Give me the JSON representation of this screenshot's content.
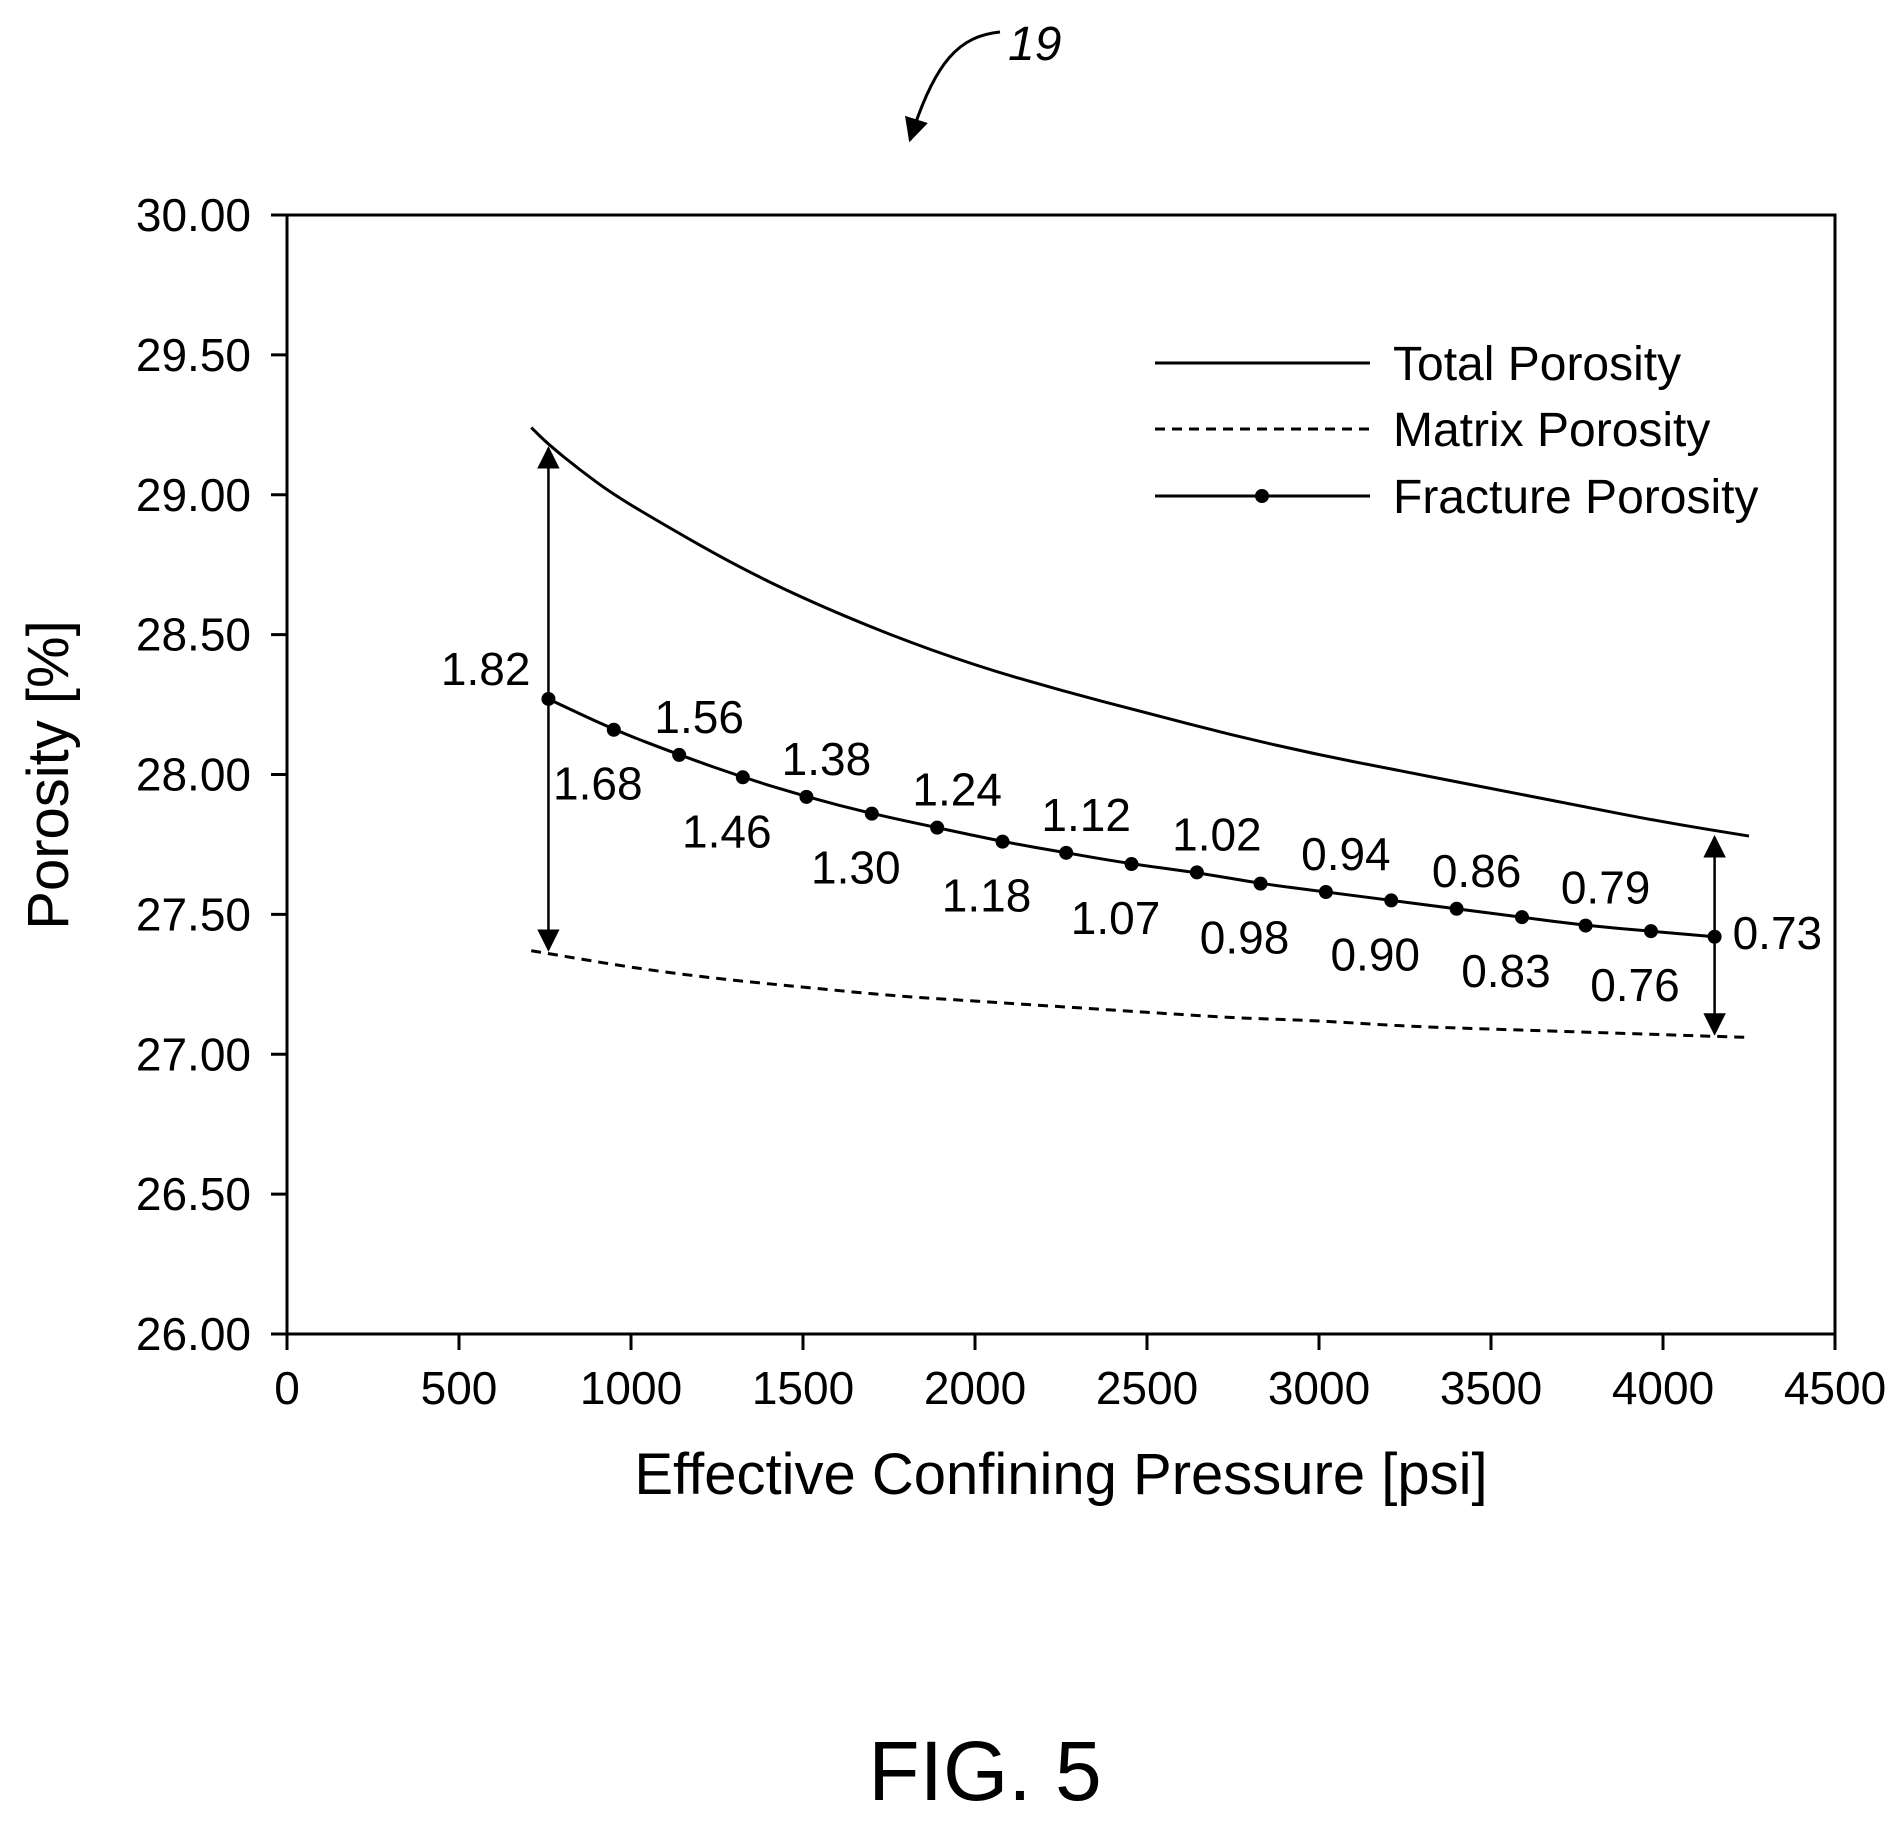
{
  "figure": {
    "caption": "FIG. 5",
    "reference_numeral": "19"
  },
  "chart_data": {
    "type": "line",
    "xlabel": "Effective Confining Pressure [psi]",
    "ylabel": "Porosity [%]",
    "xlim": [
      0,
      4500
    ],
    "ylim": [
      26.0,
      30.0
    ],
    "x_ticks": [
      "0",
      "500",
      "1000",
      "1500",
      "2000",
      "2500",
      "3000",
      "3500",
      "4000",
      "4500"
    ],
    "y_ticks": [
      "26.00",
      "26.50",
      "27.00",
      "27.50",
      "28.00",
      "28.50",
      "29.00",
      "29.50",
      "30.00"
    ],
    "grid": false,
    "legend_position": "top-right",
    "legend": [
      {
        "label": "Total Porosity",
        "style": "solid"
      },
      {
        "label": "Matrix Porosity",
        "style": "dashed"
      },
      {
        "label": "Fracture Porosity",
        "style": "solid-marker"
      }
    ],
    "series": [
      {
        "name": "Total Porosity",
        "style": "solid",
        "x": [
          710,
          760,
          850,
          950,
          1100,
          1300,
          1500,
          1750,
          2000,
          2250,
          2500,
          2750,
          3000,
          3250,
          3500,
          3750,
          4000,
          4250
        ],
        "y": [
          29.24,
          29.18,
          29.09,
          29.0,
          28.89,
          28.75,
          28.63,
          28.5,
          28.39,
          28.3,
          28.22,
          28.14,
          28.07,
          28.01,
          27.95,
          27.89,
          27.83,
          27.78
        ]
      },
      {
        "name": "Matrix Porosity",
        "style": "dashed",
        "x": [
          710,
          760,
          1000,
          1250,
          1500,
          1750,
          2000,
          2250,
          2500,
          2750,
          3000,
          3250,
          3500,
          3750,
          4000,
          4250
        ],
        "y": [
          27.37,
          27.36,
          27.31,
          27.27,
          27.24,
          27.21,
          27.19,
          27.17,
          27.15,
          27.13,
          27.12,
          27.1,
          27.09,
          27.08,
          27.07,
          27.06
        ]
      },
      {
        "name": "Fracture Porosity",
        "style": "solid-marker",
        "x": [
          760,
          950,
          1140,
          1325,
          1510,
          1700,
          1890,
          2080,
          2265,
          2455,
          2645,
          2830,
          3020,
          3210,
          3400,
          3590,
          3775,
          3965,
          4150
        ],
        "y": [
          28.27,
          28.16,
          28.07,
          27.99,
          27.92,
          27.86,
          27.81,
          27.76,
          27.72,
          27.68,
          27.65,
          27.61,
          27.58,
          27.55,
          27.52,
          27.49,
          27.46,
          27.44,
          27.42
        ],
        "labels": [
          "1.82",
          "1.68",
          "1.56",
          "1.46",
          "1.38",
          "1.30",
          "1.24",
          "1.18",
          "1.12",
          "1.07",
          "1.02",
          "0.98",
          "0.94",
          "0.90",
          "0.86",
          "0.83",
          "0.79",
          "0.76",
          "0.73"
        ]
      }
    ],
    "range_arrows": [
      {
        "x": 760,
        "y_top": 29.18,
        "y_bottom": 27.36
      },
      {
        "x": 4150,
        "y_top": 27.79,
        "y_bottom": 27.06
      }
    ]
  }
}
